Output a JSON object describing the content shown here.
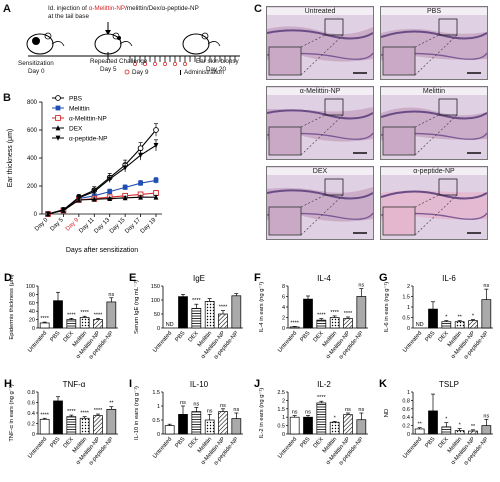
{
  "labels": {
    "A": "A",
    "B": "B",
    "C": "C",
    "D": "D",
    "E": "E",
    "F": "F",
    "G": "G",
    "H": "H",
    "I": "I",
    "J": "J",
    "K": "K"
  },
  "schemeA": {
    "title_prefix": "Id. injection of ",
    "title_colored": "α-Melittin-NP",
    "title_suffix": "/melittin/Dex/α-peptide-NP",
    "title_line2": "at the tail base",
    "sensitization": "Sensitization",
    "day0": "Day 0",
    "repeated": "Repeated Challenge",
    "day5": "Day 5",
    "biopsy": "Ear skin biopsy",
    "day20": "Day 20",
    "day9": "Day 9",
    "administration": "Administration",
    "colors": {
      "highlight": "#d62728"
    }
  },
  "chartB": {
    "chart_data": {
      "type": "line",
      "x": [
        "Day 0",
        "Day 5",
        "Day 9",
        "Day 11",
        "Day 13",
        "Day 15",
        "Day 17",
        "Day 19"
      ],
      "xlabel": "Days after sensitization",
      "ylabel": "Ear thickness (μm)",
      "ylim": [
        0,
        800
      ],
      "yticks": [
        0,
        200,
        400,
        600,
        800
      ],
      "highlight_tick": "Day 9",
      "series": [
        {
          "name": "PBS",
          "values": [
            0,
            30,
            120,
            170,
            260,
            350,
            470,
            600
          ],
          "err": [
            0,
            10,
            20,
            25,
            30,
            35,
            40,
            45
          ],
          "color": "#000000",
          "marker": "circle-open"
        },
        {
          "name": "Melittin",
          "values": [
            0,
            30,
            110,
            130,
            160,
            190,
            220,
            240
          ],
          "err": [
            0,
            8,
            15,
            15,
            18,
            18,
            20,
            22
          ],
          "color": "#1f4fb4",
          "marker": "square"
        },
        {
          "name": "α-Melittin-NP",
          "values": [
            0,
            25,
            100,
            110,
            120,
            130,
            140,
            150
          ],
          "err": [
            0,
            8,
            12,
            12,
            14,
            15,
            15,
            18
          ],
          "color": "#d62728",
          "marker": "square-open"
        },
        {
          "name": "DEX",
          "values": [
            0,
            25,
            100,
            105,
            110,
            115,
            120,
            120
          ],
          "err": [
            0,
            8,
            10,
            10,
            10,
            12,
            12,
            12
          ],
          "color": "#000000",
          "marker": "triangle"
        },
        {
          "name": "α-peptide-NP",
          "values": [
            0,
            30,
            115,
            160,
            250,
            330,
            420,
            490
          ],
          "err": [
            0,
            10,
            18,
            20,
            25,
            30,
            35,
            40
          ],
          "color": "#000000",
          "marker": "triangle-down"
        }
      ]
    }
  },
  "histology": [
    {
      "label": "Untreated"
    },
    {
      "label": "PBS"
    },
    {
      "label": "α-Melittin-NP"
    },
    {
      "label": "Melittin"
    },
    {
      "label": "DEX"
    },
    {
      "label": "α-peptide-NP"
    }
  ],
  "bars": [
    {
      "key": "D",
      "title": "",
      "ylabel": "Epidermis thickness (μm)",
      "ymax": 100,
      "yticks": [
        0,
        20,
        40,
        60,
        80,
        100
      ],
      "values": [
        12,
        65,
        20,
        25,
        20,
        62
      ],
      "err": [
        2,
        20,
        3,
        3,
        3,
        10
      ],
      "sig": [
        "****",
        "",
        "****",
        "****",
        "****",
        "ns"
      ],
      "nd": [
        false,
        false,
        false,
        false,
        false,
        false
      ]
    },
    {
      "key": "E",
      "title": "IgE",
      "ylabel": "Serum IgE (ng mL⁻¹)",
      "ymax": 150,
      "yticks": [
        0,
        50,
        100,
        150
      ],
      "values": [
        0,
        112,
        70,
        95,
        50,
        115
      ],
      "err": [
        0,
        8,
        15,
        10,
        12,
        8
      ],
      "sig": [
        "",
        "",
        "****",
        "",
        "****",
        ""
      ],
      "nd": [
        true,
        false,
        false,
        false,
        false,
        false
      ]
    },
    {
      "key": "F",
      "title": "IL-4",
      "ylabel": "IL-4 in ears (ng g⁻¹)",
      "ymax": 8,
      "yticks": [
        0,
        2,
        4,
        6,
        8
      ],
      "values": [
        0.2,
        5.5,
        1.5,
        2.0,
        1.8,
        6.0
      ],
      "err": [
        0.1,
        0.6,
        0.3,
        0.3,
        0.3,
        1.5
      ],
      "sig": [
        "****",
        "",
        "****",
        "****",
        "****",
        "ns"
      ],
      "nd": [
        false,
        false,
        false,
        false,
        false,
        false
      ]
    },
    {
      "key": "G",
      "title": "IL-6",
      "ylabel": "IL-6 in ears (ng g⁻¹)",
      "ymax": 2.0,
      "yticks": [
        0,
        0.5,
        1.0,
        1.5,
        2.0
      ],
      "values": [
        0,
        0.9,
        0.3,
        0.3,
        0.35,
        1.35
      ],
      "err": [
        0,
        0.35,
        0.05,
        0.05,
        0.05,
        0.5
      ],
      "sig": [
        "",
        "",
        "*",
        "**",
        "*",
        "ns"
      ],
      "nd": [
        true,
        false,
        false,
        false,
        false,
        false
      ]
    },
    {
      "key": "H",
      "title": "TNF-α",
      "ylabel": "TNF-α in ears (ng g⁻¹)",
      "ymax": 0.8,
      "yticks": [
        0,
        0.2,
        0.4,
        0.6,
        0.8
      ],
      "values": [
        0.28,
        0.63,
        0.33,
        0.3,
        0.35,
        0.47
      ],
      "err": [
        0.02,
        0.08,
        0.03,
        0.03,
        0.03,
        0.05
      ],
      "sig": [
        "****",
        "",
        "****",
        "****",
        "****",
        "**"
      ],
      "nd": [
        false,
        false,
        false,
        false,
        false,
        false
      ]
    },
    {
      "key": "I",
      "title": "IL-10",
      "ylabel": "IL-10 in ears (ng g⁻¹)",
      "ymax": 1.5,
      "yticks": [
        0,
        0.5,
        1.0,
        1.5
      ],
      "values": [
        0.3,
        0.7,
        0.8,
        0.5,
        0.8,
        0.55
      ],
      "err": [
        0.05,
        0.3,
        0.15,
        0.2,
        0.1,
        0.2
      ],
      "sig": [
        "",
        "ns",
        "ns",
        "ns",
        "ns",
        "ns"
      ],
      "nd": [
        false,
        false,
        false,
        false,
        false,
        false
      ]
    },
    {
      "key": "J",
      "title": "IL-2",
      "ylabel": "IL-2 in ears (ng g⁻¹)",
      "ymax": 2.5,
      "yticks": [
        0,
        0.5,
        1.0,
        1.5,
        2.0,
        2.5
      ],
      "values": [
        1.0,
        1.0,
        1.85,
        0.7,
        1.15,
        0.85
      ],
      "err": [
        0.1,
        0.1,
        0.1,
        0.05,
        0.1,
        0.4
      ],
      "sig": [
        "ns",
        "ns",
        "****",
        "*",
        "ns",
        "ns"
      ],
      "nd": [
        false,
        false,
        false,
        false,
        false,
        false
      ]
    },
    {
      "key": "K",
      "title": "TSLP",
      "ylabel": "ND",
      "ymax": 1.0,
      "yticks": [
        0,
        0.2,
        0.4,
        0.6,
        0.8,
        1.0
      ],
      "values": [
        0.12,
        0.55,
        0.17,
        0.08,
        0.07,
        0.2
      ],
      "err": [
        0.03,
        0.4,
        0.1,
        0.05,
        0.03,
        0.15
      ],
      "sig": [
        "**",
        "",
        "*",
        "*",
        "**",
        "ns"
      ],
      "nd": [
        false,
        false,
        false,
        false,
        false,
        false
      ]
    }
  ],
  "bar_categories": [
    "Untreated",
    "PBS",
    "DEX",
    "Melittin",
    "α-Melittin-NP",
    "α-peptide-NP"
  ]
}
